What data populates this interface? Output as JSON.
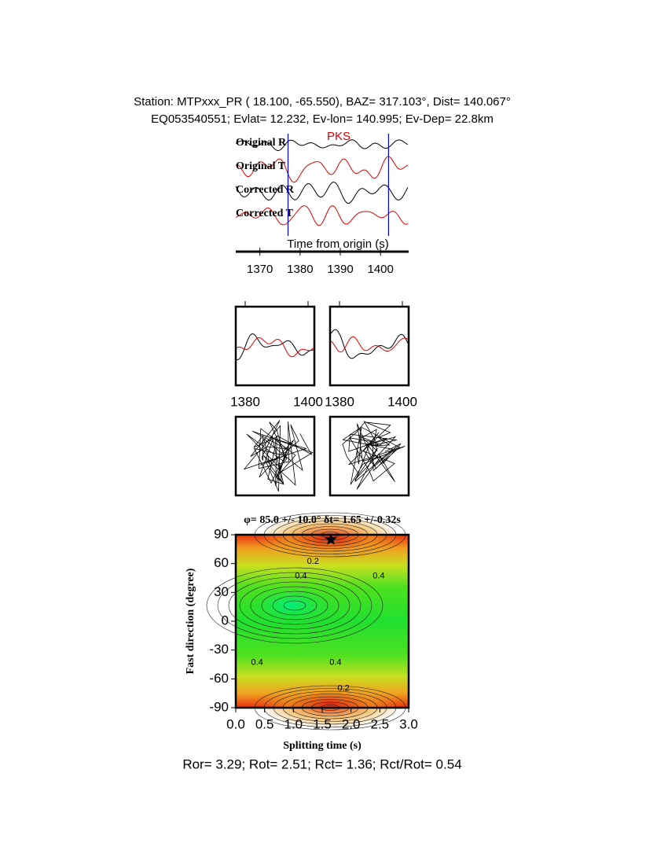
{
  "chart_data": [
    {
      "type": "waveform",
      "title": [
        "Station: MTPxxx_PR (  18.100,  -65.550), BAZ=  317.103°, Dist=  140.067°",
        "EQ053540551; Evlat=  12.232, Ev-lon= 140.995; Ev-Dep= 22.8km"
      ],
      "traces": [
        {
          "name": "Original R",
          "color": "#000000"
        },
        {
          "name": "Original T",
          "color": "#e00000"
        },
        {
          "name": "Corrected R",
          "color": "#000000"
        },
        {
          "name": "Corrected T",
          "color": "#e00000"
        }
      ],
      "phase": "PKS",
      "phase_color": "#e00000",
      "window": [
        1377,
        1402
      ],
      "window_color": "#0000cc",
      "xlabel": "Time from origin (s)",
      "xlim": [
        1364,
        1407
      ],
      "xticks": [
        1370,
        1380,
        1390,
        1400
      ]
    },
    {
      "type": "waveform-pair",
      "xlim": [
        1377,
        1402
      ],
      "xticks": [
        1380,
        1400
      ]
    },
    {
      "type": "particle-motion"
    },
    {
      "type": "contour",
      "title": "φ= 85.0 +/- 10.0° δt= 1.65 +/-0.32s",
      "xlabel": "Splitting time (s)",
      "ylabel": "Fast direction (degree)",
      "xlim": [
        0,
        3
      ],
      "ylim": [
        -90,
        90
      ],
      "xticks": [
        {
          "value": 0,
          "label": "0.0"
        },
        0.5,
        {
          "value": 1,
          "label": "1.0"
        },
        1.5,
        {
          "value": 2,
          "label": "2.0"
        },
        2.5,
        {
          "value": 3,
          "label": "3.0"
        }
      ],
      "yticks": [
        -90,
        -60,
        -30,
        0,
        30,
        60,
        90
      ],
      "best": {
        "x": 1.65,
        "y": 85
      },
      "contour_labels": [
        {
          "x": 1.34,
          "y": 62,
          "level": 0.2
        },
        {
          "x": 1.13,
          "y": 47,
          "level": 0.4
        },
        {
          "x": 2.48,
          "y": 47,
          "level": 0.4
        },
        {
          "x": 0.37,
          "y": -43,
          "level": 0.4
        },
        {
          "x": 1.73,
          "y": -43,
          "level": 0.4
        },
        {
          "x": 1.87,
          "y": -70,
          "level": 0.2
        }
      ],
      "footer": "Ror= 3.29; Rot= 2.51; Rct= 1.36; Rct/Rot= 0.54"
    }
  ]
}
